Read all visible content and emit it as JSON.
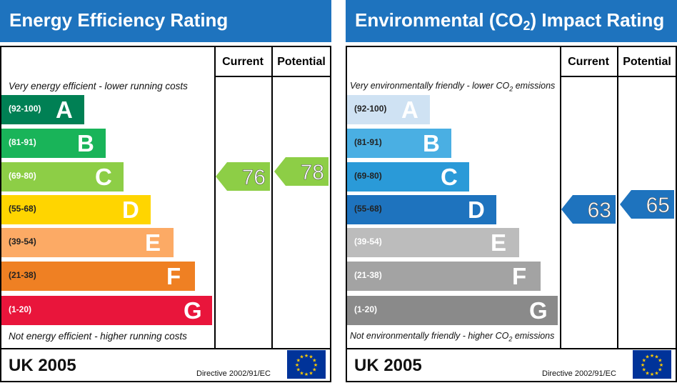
{
  "panels": [
    {
      "title": "Energy Efficiency Rating",
      "top_note": "Very energy efficient - lower running costs",
      "bottom_note": "Not energy efficient - higher running costs",
      "col_current": "Current",
      "col_potential": "Potential",
      "footer_region": "UK 2005",
      "footer_directive": "Directive 2002/91/EC"
    },
    {
      "title_prefix": "Environmental (CO",
      "title_sub": "2",
      "title_suffix": ") Impact Rating",
      "top_note_prefix": "Very environmentally friendly - lower CO",
      "top_note_sub": "2",
      "top_note_suffix": " emissions",
      "bottom_note_prefix": "Not environmentally friendly - higher CO",
      "bottom_note_sub": "2",
      "bottom_note_suffix": " emissions",
      "col_current": "Current",
      "col_potential": "Potential",
      "footer_region": "UK 2005",
      "footer_directive": "Directive 2002/91/EC"
    }
  ],
  "chart_data": [
    {
      "type": "bar",
      "title": "Energy Efficiency Rating",
      "categories": [
        "A",
        "B",
        "C",
        "D",
        "E",
        "F",
        "G"
      ],
      "ranges": [
        "(92-100)",
        "(81-91)",
        "(69-80)",
        "(55-68)",
        "(39-54)",
        "(21-38)",
        "(1-20)"
      ],
      "colors": [
        "#008054",
        "#19b459",
        "#8dce46",
        "#ffd500",
        "#fcaa65",
        "#ef8023",
        "#e9153b"
      ],
      "current": 76,
      "potential": 78,
      "arrow_color": "#8dce46"
    },
    {
      "type": "bar",
      "title": "Environmental (CO2) Impact Rating",
      "categories": [
        "A",
        "B",
        "C",
        "D",
        "E",
        "F",
        "G"
      ],
      "ranges": [
        "(92-100)",
        "(81-91)",
        "(69-80)",
        "(55-68)",
        "(39-54)",
        "(21-38)",
        "(1-20)"
      ],
      "colors": [
        "#cfe2f3",
        "#4aafe3",
        "#2a9ad8",
        "#1e73be",
        "#bcbcbc",
        "#a3a3a3",
        "#8a8a8a"
      ],
      "current": 63,
      "potential": 65,
      "arrow_color": "#1e73be"
    }
  ]
}
